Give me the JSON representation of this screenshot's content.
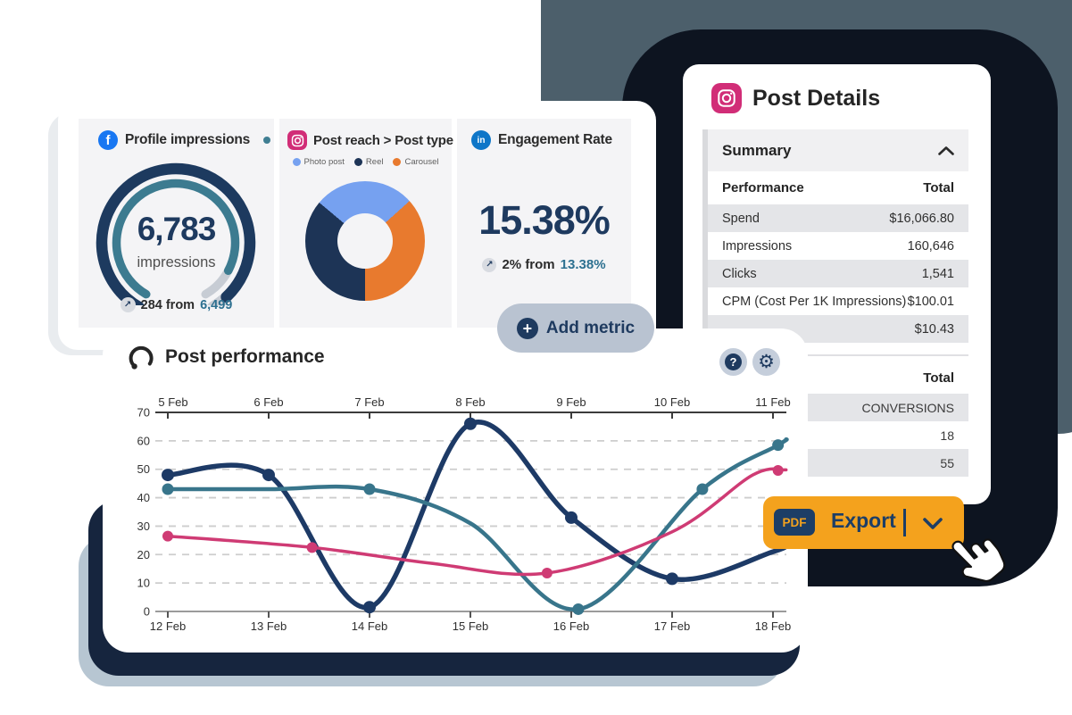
{
  "colors": {
    "navy_text": "#1e3a5f",
    "slate_bg": "#4c5f6b",
    "navy_blob": "#0d1420",
    "accent_orange": "#f4a21d",
    "teal_link": "#2d7090",
    "gauge_outer": "#1d3a5f",
    "gauge_inner": "#3c7b90",
    "gauge_rest": "#c7ccd4",
    "grid_line": "#cdcdcd"
  },
  "icons": {
    "gear": "⚙",
    "trend_up": "↗",
    "plus": "+",
    "question": "?",
    "facebook_f": "f",
    "linkedin_in": "in"
  },
  "dashboard": {
    "profile_tile": {
      "title": "Profile impressions",
      "value": "6,783",
      "unit": "impressions",
      "footer_prefix": "284 from",
      "footer_link": "6,499",
      "gauge": {
        "start_deg": -150,
        "end_deg": 150,
        "outer_value_end_deg": 137,
        "inner_value_end_deg": 118
      }
    },
    "reach_tile": {
      "title": "Post reach > Post type",
      "legend": [
        {
          "label": "Photo post",
          "color": "#76a1f0"
        },
        {
          "label": "Reel",
          "color": "#1d3456"
        },
        {
          "label": "Carousel",
          "color": "#e87a2e"
        }
      ],
      "donut": {
        "from_deg": 48,
        "slices": [
          {
            "label": "Carousel",
            "color": "#e87a2e",
            "sweep_deg": 132,
            "share_pct": 36.7
          },
          {
            "label": "Reel",
            "color": "#1d3456",
            "sweep_deg": 130,
            "share_pct": 36.1
          },
          {
            "label": "Photo post",
            "color": "#76a1f0",
            "sweep_deg": 98,
            "share_pct": 27.2
          }
        ]
      }
    },
    "engagement_tile": {
      "title": "Engagement Rate",
      "value": "15.38%",
      "footer_prefix": "2% from",
      "footer_link": "13.38%"
    },
    "add_metric_label": "Add metric"
  },
  "post_details": {
    "title": "Post Details",
    "summary_label": "Summary",
    "performance_table": {
      "col_label": "Performance",
      "col_total": "Total",
      "rows": [
        {
          "label": "Spend",
          "value": "$16,066.80"
        },
        {
          "label": "Impressions",
          "value": "160,646"
        },
        {
          "label": "Clicks",
          "value": "1,541"
        },
        {
          "label": "CPM (Cost Per 1K Impressions)",
          "value": "$100.01"
        },
        {
          "label": "",
          "value": "$10.43"
        }
      ]
    },
    "secondary_table": {
      "col_total": "Total",
      "rows": [
        {
          "value": "CONVERSIONS"
        },
        {
          "value": "18"
        },
        {
          "value": "55"
        }
      ]
    }
  },
  "post_performance": {
    "title": "Post performance",
    "chart_data": {
      "type": "line",
      "title": "Post performance",
      "top_axis_labels": [
        "5 Feb",
        "6 Feb",
        "7 Feb",
        "8 Feb",
        "9 Feb",
        "10 Feb",
        "11 Feb"
      ],
      "bottom_axis_labels": [
        "12 Feb",
        "13 Feb",
        "14 Feb",
        "15 Feb",
        "16 Feb",
        "17 Feb",
        "18 Feb"
      ],
      "ylim": [
        0,
        70
      ],
      "yticks": [
        0,
        10,
        20,
        30,
        40,
        50,
        60,
        70
      ],
      "grid": "dashed-horizontal",
      "legend_position": "none",
      "series": [
        {
          "name": "dark-navy-series",
          "color": "#1d3a66",
          "width": 5.5,
          "dot_r": 7,
          "points": [
            [
              0,
              48
            ],
            [
              1,
              48
            ],
            [
              2,
              1.5
            ],
            [
              3,
              66
            ],
            [
              4,
              33
            ],
            [
              5,
              11.5
            ],
            [
              6,
              21
            ],
            [
              6.13,
              23.5
            ]
          ],
          "dots": [
            [
              0,
              48
            ],
            [
              1,
              48
            ],
            [
              2,
              1.5
            ],
            [
              3,
              66
            ],
            [
              4,
              33
            ],
            [
              5,
              11.5
            ]
          ]
        },
        {
          "name": "teal-series",
          "color": "#38758b",
          "width": 4.5,
          "dot_r": 6.5,
          "points": [
            [
              0,
              43
            ],
            [
              1,
              43
            ],
            [
              2,
              43
            ],
            [
              3,
              31
            ],
            [
              4.07,
              0.8
            ],
            [
              5.3,
              43
            ],
            [
              6.05,
              58.5
            ],
            [
              6.13,
              60.5
            ]
          ],
          "dots": [
            [
              0,
              43
            ],
            [
              2,
              43
            ],
            [
              4.07,
              0.8
            ],
            [
              5.3,
              43
            ],
            [
              6.05,
              58.5
            ]
          ]
        },
        {
          "name": "pink-series",
          "color": "#cf3b74",
          "width": 3.5,
          "dot_r": 6,
          "points": [
            [
              0,
              26.5
            ],
            [
              1.43,
              22.5
            ],
            [
              2.6,
              17
            ],
            [
              3.76,
              13.5
            ],
            [
              5,
              28
            ],
            [
              5.8,
              48
            ],
            [
              6.13,
              49.8
            ]
          ],
          "dots": [
            [
              0,
              26.5
            ],
            [
              1.43,
              22.5
            ],
            [
              3.76,
              13.5
            ],
            [
              6.05,
              49.6
            ]
          ]
        }
      ]
    }
  },
  "export": {
    "badge": "PDF",
    "label": "Export"
  }
}
